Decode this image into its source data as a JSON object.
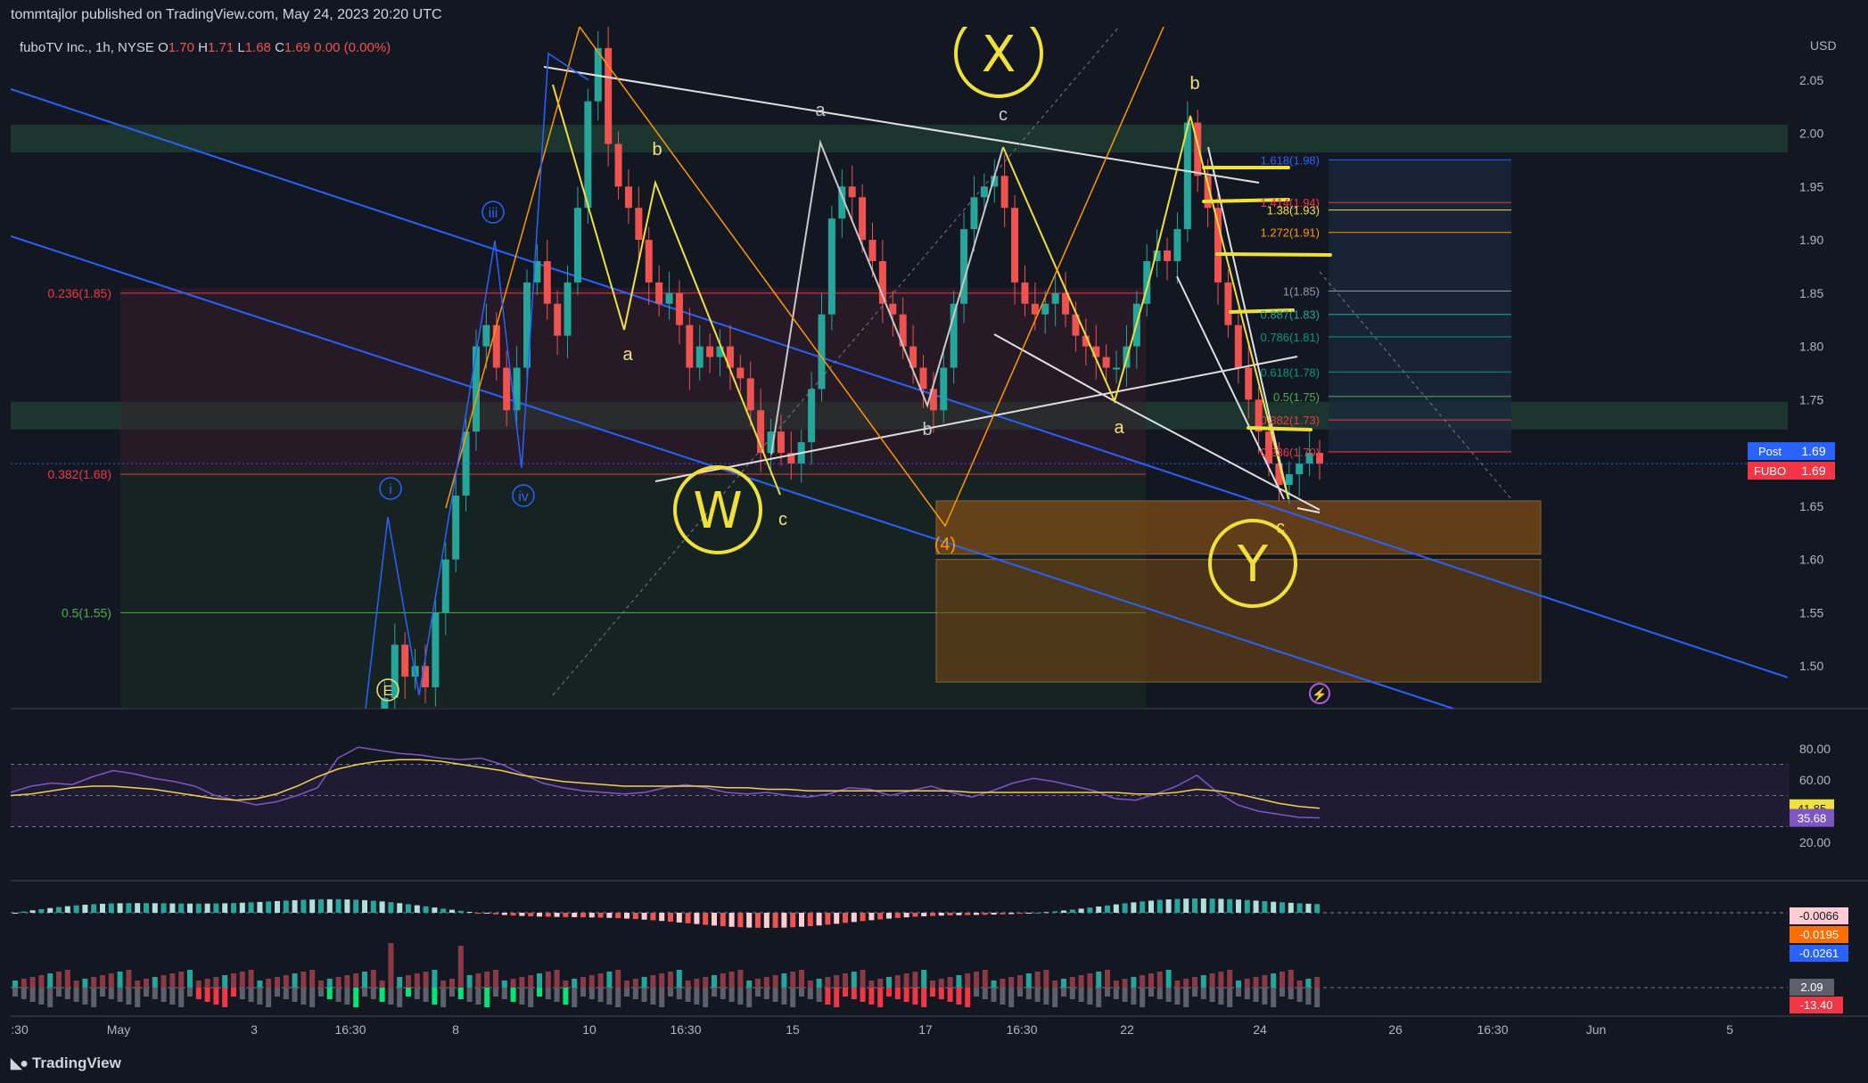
{
  "header": {
    "publish": "tommtajlor published on TradingView.com, May 24, 2023 20:20 UTC",
    "symbol_line": "fuboTV Inc., 1h, NYSE",
    "o_label": "O",
    "o": "1.70",
    "h_label": "H",
    "h": "1.71",
    "l_label": "L",
    "l": "1.68",
    "c_label": "C",
    "c": "1.69",
    "change": "0.00 (0.00%)"
  },
  "footer": {
    "logo": "TradingView"
  },
  "colors": {
    "background": "#131722",
    "up": "#26a69a",
    "down": "#ef5350",
    "annotation_yellow": "#f0e03c",
    "channel_blue": "#2962ff",
    "elliott_white": "#d1d4dc"
  },
  "chart_data": [
    {
      "type": "candlestick",
      "ticker": "FUBO",
      "currency": "USD",
      "interval": "1h",
      "ylim": [
        1.46,
        2.1
      ],
      "y_ticks": [
        "2.05",
        "2.00",
        "1.95",
        "1.90",
        "1.85",
        "1.80",
        "1.75",
        "1.70",
        "1.65",
        "1.60",
        "1.55",
        "1.50"
      ],
      "x_ticks": [
        ":30",
        "May",
        "3",
        "16:30",
        "8",
        "10",
        "16:30",
        "15",
        "17",
        "16:30",
        "22",
        "24",
        "26",
        "16:30",
        "Jun",
        "5"
      ],
      "last_price": {
        "label": "Post",
        "value": "1.69"
      },
      "ticker_price": {
        "label": "FUBO",
        "value": "1.69"
      },
      "ohlc_closes": [
        1.43,
        1.47,
        1.52,
        1.49,
        1.5,
        1.48,
        1.55,
        1.6,
        1.66,
        1.72,
        1.8,
        1.82,
        1.78,
        1.74,
        1.78,
        1.86,
        1.88,
        1.84,
        1.81,
        1.86,
        1.93,
        2.03,
        2.08,
        1.99,
        1.95,
        1.93,
        1.9,
        1.86,
        1.84,
        1.85,
        1.82,
        1.78,
        1.8,
        1.79,
        1.8,
        1.78,
        1.77,
        1.74,
        1.7,
        1.72,
        1.7,
        1.69,
        1.71,
        1.76,
        1.83,
        1.92,
        1.95,
        1.94,
        1.9,
        1.88,
        1.84,
        1.83,
        1.8,
        1.78,
        1.76,
        1.74,
        1.78,
        1.84,
        1.91,
        1.94,
        1.95,
        1.96,
        1.93,
        1.86,
        1.84,
        1.83,
        1.84,
        1.85,
        1.83,
        1.81,
        1.8,
        1.79,
        1.78,
        1.78,
        1.8,
        1.84,
        1.88,
        1.89,
        1.88,
        1.91,
        2.01,
        1.96,
        1.93,
        1.86,
        1.82,
        1.78,
        1.75,
        1.72,
        1.69,
        1.67,
        1.68,
        1.69,
        1.7,
        1.69
      ],
      "fib_left": [
        {
          "label": "0.236(1.85)",
          "value": 1.85,
          "color": "#f23645"
        },
        {
          "label": "0.382(1.68)",
          "value": 1.68,
          "color": "#f23645"
        },
        {
          "label": "0.5(1.55)",
          "value": 1.55,
          "color": "#4caf50"
        }
      ],
      "fib_right": [
        {
          "label": "1.618(1.98)",
          "value": 1.975,
          "color": "#2962ff"
        },
        {
          "label": "1.414(1.94)",
          "value": 1.935,
          "color": "#f23645"
        },
        {
          "label": "1.38(1.93)",
          "value": 1.928,
          "color": "#f0e03c"
        },
        {
          "label": "1.272(1.91)",
          "value": 1.907,
          "color": "#ff9800"
        },
        {
          "label": "1(1.85)",
          "value": 1.852,
          "color": "#9598a1"
        },
        {
          "label": "0.887(1.83)",
          "value": 1.83,
          "color": "#26a69a"
        },
        {
          "label": "0.786(1.81)",
          "value": 1.809,
          "color": "#089981"
        },
        {
          "label": "0.618(1.78)",
          "value": 1.776,
          "color": "#089981"
        },
        {
          "label": "0.5(1.75)",
          "value": 1.753,
          "color": "#4caf50"
        },
        {
          "label": "0.382(1.73)",
          "value": 1.731,
          "color": "#f23645"
        },
        {
          "label": "0.236(1.70)",
          "value": 1.701,
          "color": "#f23645"
        }
      ],
      "wave_labels": [
        "i",
        "iii",
        "iv",
        "a",
        "b",
        "c",
        "a",
        "b",
        "c",
        "a",
        "b",
        "c",
        "(4)",
        "E"
      ],
      "handwritten": [
        "W",
        "X",
        "Y"
      ]
    },
    {
      "type": "line",
      "name": "RSI",
      "ylim": [
        0,
        100
      ],
      "y_ticks": [
        "80.00",
        "60.00",
        "20.00"
      ],
      "rsi_values": [
        52,
        56,
        58,
        57,
        62,
        66,
        64,
        61,
        59,
        56,
        50,
        47,
        44,
        46,
        50,
        55,
        74,
        81,
        79,
        77,
        76,
        74,
        73,
        74,
        70,
        64,
        58,
        55,
        53,
        52,
        51,
        52,
        55,
        57,
        55,
        52,
        51,
        52,
        50,
        49,
        51,
        55,
        54,
        50,
        53,
        56,
        52,
        49,
        53,
        58,
        61,
        59,
        56,
        53,
        48,
        47,
        51,
        56,
        63,
        52,
        44,
        40,
        38,
        36,
        35.68
      ],
      "ma_values": [
        50,
        51,
        53,
        55,
        56,
        56,
        55,
        54,
        52,
        50,
        48,
        47,
        48,
        51,
        56,
        62,
        67,
        70,
        72,
        73,
        73,
        72,
        70,
        68,
        66,
        63,
        61,
        59,
        58,
        57,
        56,
        56,
        56,
        56,
        56,
        55,
        55,
        54,
        54,
        53,
        53,
        53,
        53,
        53,
        53,
        53,
        53,
        52,
        52,
        52,
        52,
        52,
        52,
        52,
        52,
        51,
        51,
        52,
        54,
        53,
        51,
        48,
        45,
        43,
        41.85
      ],
      "price_labels": [
        "41.85",
        "35.68"
      ]
    },
    {
      "type": "bar",
      "name": "MACD",
      "price_labels": [
        "-0.0066",
        "-0.0195",
        "-0.0261"
      ]
    },
    {
      "type": "bar",
      "name": "Volume oscillator",
      "price_labels": [
        "2.09",
        "-13.40"
      ]
    }
  ]
}
